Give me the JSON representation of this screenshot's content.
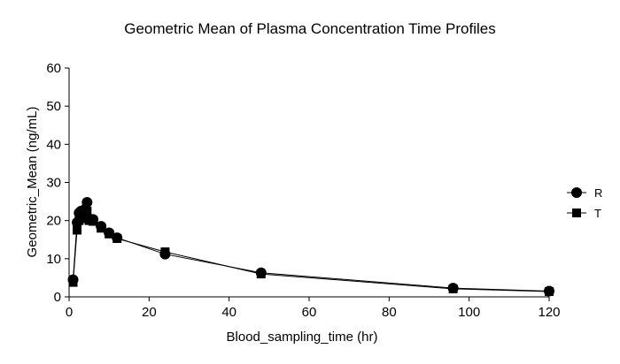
{
  "chart_data": {
    "type": "line",
    "title": "Geometric Mean of Plasma Concentration Time Profiles",
    "xlabel": "Blood_sampling_time (hr)",
    "ylabel": "Geometric_Mean (ng/mL)",
    "xlim": [
      0,
      120
    ],
    "ylim": [
      0,
      60
    ],
    "xticks": [
      "0",
      "20",
      "40",
      "60",
      "80",
      "100",
      "120"
    ],
    "yticks": [
      "0",
      "10",
      "20",
      "30",
      "40",
      "50",
      "60"
    ],
    "grid": false,
    "legend_position": "right",
    "series": [
      {
        "name": "R",
        "marker": "circle",
        "color": "#000000",
        "x": [
          1,
          2,
          2.5,
          3,
          3.5,
          4,
          4.5,
          5,
          6,
          8,
          10,
          12,
          24,
          48,
          96,
          120
        ],
        "y": [
          4.5,
          19.5,
          22.0,
          22.5,
          21.5,
          23.0,
          24.8,
          20.5,
          20.3,
          18.5,
          16.8,
          15.5,
          11.2,
          6.3,
          2.3,
          1.5
        ]
      },
      {
        "name": "T",
        "marker": "square",
        "color": "#000000",
        "x": [
          1,
          2,
          2.5,
          3,
          3.5,
          4,
          4.5,
          5,
          6,
          8,
          10,
          12,
          24,
          48,
          96,
          120
        ],
        "y": [
          3.8,
          17.5,
          20.0,
          21.0,
          20.5,
          21.5,
          22.5,
          20.0,
          19.8,
          18.0,
          16.5,
          15.3,
          11.8,
          6.0,
          2.1,
          1.4
        ]
      }
    ]
  }
}
